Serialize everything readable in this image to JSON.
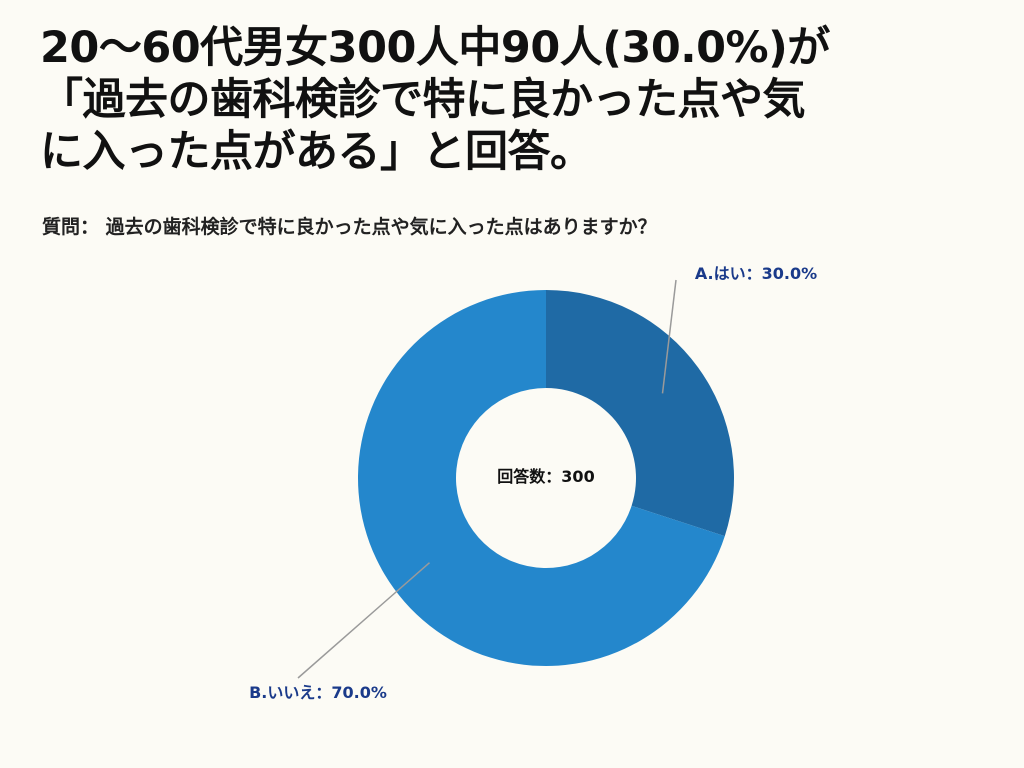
{
  "headline": {
    "lines": [
      "20〜60代男女300人中90人(30.0%)が",
      "「過去の歯科検診で特に良かった点や気",
      "に入った点がある」と回答。"
    ]
  },
  "question": "質問：  過去の歯科検診で特に良かった点や気に入った点はありますか？",
  "chart_data": {
    "type": "pie",
    "variant": "donut",
    "center_label": "回答数：300",
    "categories": [
      "A.はい",
      "B.いいえ"
    ],
    "values": [
      30.0,
      70.0
    ],
    "data_labels": [
      "A.はい：30.0%",
      "B.いいえ：70.0%"
    ],
    "colors": [
      "#1f6aa5",
      "#2487cc"
    ],
    "label_color": "#1a3a8a",
    "leader_color": "#9a9a9a"
  }
}
